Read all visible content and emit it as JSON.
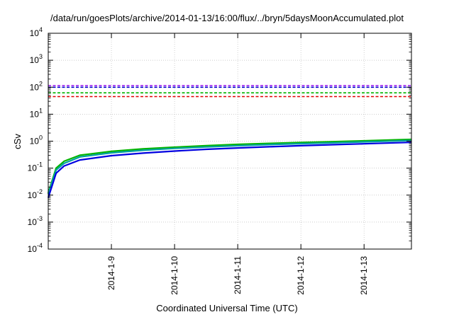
{
  "chart_data": {
    "type": "line",
    "title": "/data/run/goesPlots/archive/2014-01-13/16:00/flux/../bryn/5daysMoonAccumulated.plot",
    "xlabel": "Coordinated Universal Time (UTC)",
    "ylabel": "cSv",
    "yscale": "log",
    "ylim": [
      0.0001,
      10000
    ],
    "xlim": [
      "2014-01-08T00:00",
      "2014-01-13T18:00"
    ],
    "grid": true,
    "x_ticks": [
      "2014-1-9",
      "2014-1-10",
      "2014-1-11",
      "2014-1-12",
      "2014-1-13"
    ],
    "y_ticks": [
      {
        "base": "10",
        "exp": "-4"
      },
      {
        "base": "10",
        "exp": "-3"
      },
      {
        "base": "10",
        "exp": "-2"
      },
      {
        "base": "10",
        "exp": "-1"
      },
      {
        "base": "10",
        "exp": "0"
      },
      {
        "base": "10",
        "exp": "1"
      },
      {
        "base": "10",
        "exp": "2"
      },
      {
        "base": "10",
        "exp": "3"
      },
      {
        "base": "10",
        "exp": "4"
      }
    ],
    "series": [
      {
        "color": "#a020f0",
        "style": "dashed",
        "x": [
          "2014-01-08T00:00",
          "2014-01-13T18:00"
        ],
        "y": [
          115,
          115
        ]
      },
      {
        "color": "#0000cd",
        "style": "dashed",
        "x": [
          "2014-01-08T00:00",
          "2014-01-13T18:00"
        ],
        "y": [
          100,
          100
        ]
      },
      {
        "color": "#00b400",
        "style": "dashed",
        "x": [
          "2014-01-08T00:00",
          "2014-01-13T18:00"
        ],
        "y": [
          62,
          62
        ]
      },
      {
        "color": "#e00000",
        "style": "dashed",
        "x": [
          "2014-01-08T00:00",
          "2014-01-13T18:00"
        ],
        "y": [
          45,
          45
        ]
      },
      {
        "color": "#00b400",
        "style": "solid",
        "x": [
          "2014-01-08T00:00",
          "2014-01-08T03:00",
          "2014-01-08T06:00",
          "2014-01-08T12:00",
          "2014-01-09T00:00",
          "2014-01-09T12:00",
          "2014-01-10T00:00",
          "2014-01-10T12:00",
          "2014-01-11T00:00",
          "2014-01-11T12:00",
          "2014-01-12T00:00",
          "2014-01-12T12:00",
          "2014-01-13T00:00",
          "2014-01-13T12:00",
          "2014-01-13T18:00"
        ],
        "y": [
          0.012,
          0.1,
          0.18,
          0.3,
          0.42,
          0.52,
          0.6,
          0.68,
          0.76,
          0.83,
          0.89,
          0.96,
          1.03,
          1.12,
          1.16
        ]
      },
      {
        "color": "#00a0a0",
        "style": "solid",
        "x": [
          "2014-01-08T00:00",
          "2014-01-08T03:00",
          "2014-01-08T06:00",
          "2014-01-08T12:00",
          "2014-01-09T00:00",
          "2014-01-09T12:00",
          "2014-01-10T00:00",
          "2014-01-10T12:00",
          "2014-01-11T00:00",
          "2014-01-11T12:00",
          "2014-01-12T00:00",
          "2014-01-12T12:00",
          "2014-01-13T00:00",
          "2014-01-13T12:00",
          "2014-01-13T18:00"
        ],
        "y": [
          0.011,
          0.085,
          0.15,
          0.26,
          0.37,
          0.46,
          0.54,
          0.61,
          0.68,
          0.75,
          0.81,
          0.87,
          0.94,
          1.02,
          1.06
        ]
      },
      {
        "color": "#0000e0",
        "style": "solid",
        "x": [
          "2014-01-08T00:00",
          "2014-01-08T03:00",
          "2014-01-08T06:00",
          "2014-01-08T12:00",
          "2014-01-09T00:00",
          "2014-01-09T12:00",
          "2014-01-10T00:00",
          "2014-01-10T12:00",
          "2014-01-11T00:00",
          "2014-01-11T12:00",
          "2014-01-12T00:00",
          "2014-01-12T12:00",
          "2014-01-13T00:00",
          "2014-01-13T12:00",
          "2014-01-13T18:00"
        ],
        "y": [
          0.008,
          0.065,
          0.12,
          0.2,
          0.29,
          0.36,
          0.43,
          0.5,
          0.56,
          0.62,
          0.68,
          0.74,
          0.8,
          0.87,
          0.9
        ]
      }
    ]
  }
}
